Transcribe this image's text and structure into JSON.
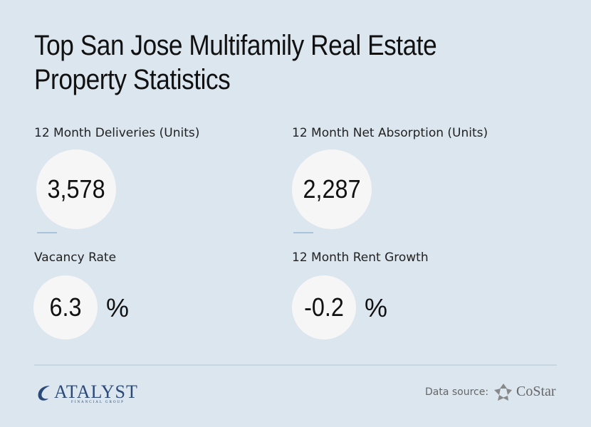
{
  "header": {
    "title_lines": [
      "Top San Jose Multifamily Real Estate",
      "Property Statistics"
    ]
  },
  "stats": [
    {
      "label": "12 Month Deliveries (Units)",
      "value": "3,578"
    },
    {
      "label": "12 Month Net Absorption (Units)",
      "value": "2,287"
    },
    {
      "label": "Vacancy Rate",
      "value": "6.3",
      "unit": "%"
    },
    {
      "label": "12 Month Rent Growth",
      "value": "-0.2",
      "unit": "%"
    }
  ],
  "footer": {
    "logo": "ATALYST",
    "logo_sub": "FINANCIAL GROUP",
    "source_label": "Data source:",
    "source_name": "CoStar"
  }
}
